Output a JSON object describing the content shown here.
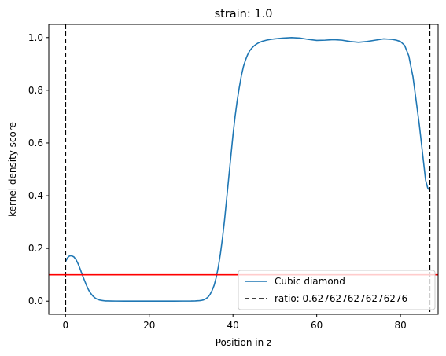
{
  "chart_data": {
    "type": "line",
    "title": "strain: 1.0",
    "xlabel": "Position in z",
    "ylabel": "kernel density score",
    "xlim": [
      -4,
      89
    ],
    "ylim": [
      -0.05,
      1.05
    ],
    "xticks": [
      0,
      20,
      40,
      60,
      80
    ],
    "yticks": [
      0.0,
      0.2,
      0.4,
      0.6,
      0.8,
      1.0
    ],
    "grid": false,
    "legend_position": "lower-right",
    "series": [
      {
        "name": "Cubic diamond",
        "color": "#1f77b4",
        "style": "solid",
        "x": [
          0,
          0.5,
          1,
          1.5,
          2,
          2.5,
          3,
          3.5,
          4,
          4.5,
          5,
          5.5,
          6,
          6.5,
          7,
          7.5,
          8,
          8.5,
          9,
          9.5,
          10,
          11,
          12,
          14,
          16,
          18,
          20,
          22,
          24,
          26,
          28,
          30,
          31,
          32,
          32.5,
          33,
          33.5,
          34,
          34.5,
          35,
          35.5,
          36,
          36.5,
          37,
          37.5,
          38,
          38.5,
          39,
          39.5,
          40,
          40.5,
          41,
          41.5,
          42,
          42.5,
          43,
          43.5,
          44,
          44.5,
          45,
          45.5,
          46,
          47,
          48,
          49,
          50,
          52,
          54,
          56,
          58,
          60,
          62,
          64,
          66,
          68,
          70,
          72,
          74,
          76,
          78,
          79,
          80,
          81,
          82,
          82.5,
          83,
          83.5,
          84,
          84.5,
          85,
          85.5,
          86,
          86.5,
          87
        ],
        "y": [
          0.15,
          0.165,
          0.172,
          0.172,
          0.168,
          0.158,
          0.142,
          0.122,
          0.1,
          0.08,
          0.06,
          0.043,
          0.03,
          0.02,
          0.013,
          0.008,
          0.005,
          0.003,
          0.002,
          0.001,
          0.001,
          0.0005,
          0.0003,
          0.0002,
          0.0002,
          0.0002,
          0.0002,
          0.0002,
          0.0002,
          0.0002,
          0.0003,
          0.0005,
          0.001,
          0.002,
          0.003,
          0.005,
          0.009,
          0.015,
          0.025,
          0.04,
          0.06,
          0.09,
          0.13,
          0.18,
          0.24,
          0.31,
          0.39,
          0.47,
          0.55,
          0.63,
          0.7,
          0.76,
          0.81,
          0.855,
          0.89,
          0.915,
          0.935,
          0.95,
          0.96,
          0.968,
          0.974,
          0.979,
          0.986,
          0.99,
          0.993,
          0.995,
          0.998,
          1.0,
          0.998,
          0.993,
          0.989,
          0.99,
          0.992,
          0.99,
          0.985,
          0.982,
          0.985,
          0.99,
          0.995,
          0.993,
          0.99,
          0.985,
          0.97,
          0.93,
          0.89,
          0.85,
          0.79,
          0.73,
          0.67,
          0.6,
          0.53,
          0.46,
          0.43,
          0.42
        ]
      }
    ],
    "vlines": [
      {
        "name": "ratio: 0.6276276276276276",
        "x": 0,
        "color": "#000000",
        "style": "dashed"
      },
      {
        "x": 87,
        "color": "#000000",
        "style": "dashed"
      }
    ],
    "hlines": [
      {
        "y": 0.1,
        "color": "#ff0000",
        "style": "solid"
      }
    ],
    "legend": [
      {
        "label": "Cubic diamond",
        "color": "#1f77b4",
        "style": "solid"
      },
      {
        "label": "ratio: 0.6276276276276276",
        "color": "#000000",
        "style": "dashed"
      }
    ]
  }
}
